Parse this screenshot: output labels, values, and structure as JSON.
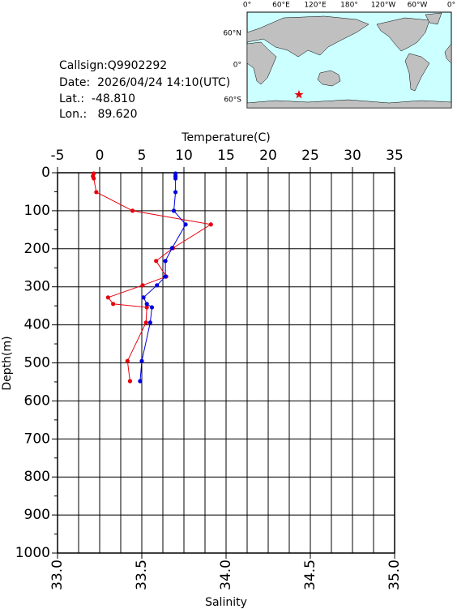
{
  "info": {
    "callsign": "Callsign:Q9902292",
    "date": "Date:  2026/04/24 14:10(UTC)",
    "lat": "Lat.:  -48.810",
    "lon": "Lon.:   89.620"
  },
  "map": {
    "lon_labels": [
      "0°",
      "60°E",
      "120°E",
      "180°",
      "120°W",
      "60°W",
      "0°"
    ],
    "lat_labels": [
      "60°N",
      "0°",
      "60°S"
    ]
  },
  "chart_data": {
    "type": "profile",
    "xlabel": "Temperature(C)",
    "x2label": "Salinity",
    "ylabel": "Depth(m)",
    "xlim": [
      -5,
      35
    ],
    "xticks": [
      -5,
      0,
      5,
      10,
      15,
      20,
      25,
      30,
      35
    ],
    "x2lim": [
      33,
      35
    ],
    "x2ticks": [
      {
        "value": 33,
        "label": "33.0"
      },
      33.5,
      {
        "value": 34,
        "label": "34.0"
      },
      34.5,
      {
        "value": 35,
        "label": "35.0"
      }
    ],
    "ylim": [
      0,
      1000
    ],
    "yticks": [
      0,
      100,
      200,
      300,
      400,
      500,
      600,
      700,
      800,
      900,
      1000
    ],
    "grid": true,
    "depth": [
      2,
      9,
      15,
      51,
      100,
      136,
      198,
      232,
      273,
      296,
      328,
      345,
      354,
      394,
      495,
      548
    ],
    "series": [
      {
        "color": "#e8000b",
        "axis": "x",
        "values": [
          -0.7,
          -0.8,
          -0.7,
          -0.4,
          3.9,
          13.2,
          8.7,
          6.7,
          7.9,
          5.1,
          1.0,
          1.6,
          5.6,
          5.5,
          3.3,
          3.6
        ]
      },
      {
        "color": "#0000e0",
        "axis": "x2",
        "values": [
          33.7,
          33.7,
          33.7,
          33.7,
          33.69,
          33.76,
          33.68,
          33.64,
          33.64,
          33.59,
          33.51,
          33.53,
          33.56,
          33.55,
          33.5,
          33.49
        ]
      }
    ]
  }
}
